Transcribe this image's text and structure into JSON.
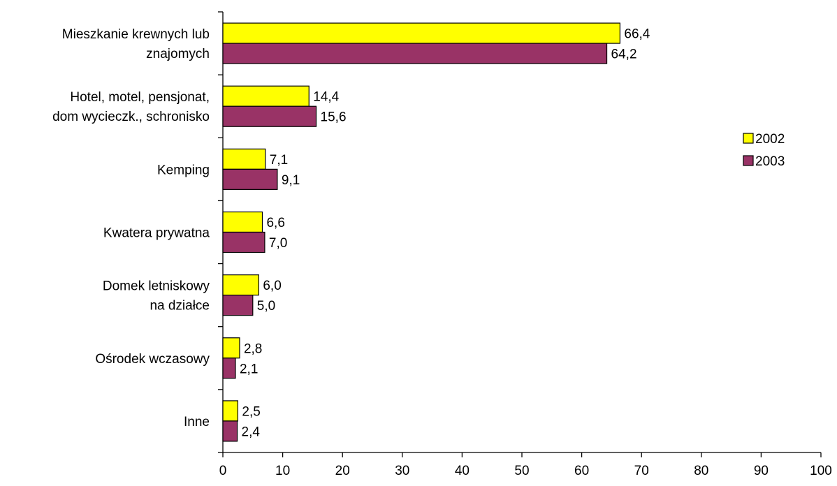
{
  "chart_data": {
    "type": "bar",
    "orientation": "horizontal",
    "categories": [
      [
        "Mieszkanie krewnych lub",
        "znajomych"
      ],
      [
        "Hotel, motel, pensjonat,",
        "dom wycieczk., schronisko"
      ],
      [
        "Kemping"
      ],
      [
        "Kwatera prywatna"
      ],
      [
        "Domek letniskowy",
        "na działce"
      ],
      [
        "Ośrodek wczasowy"
      ],
      [
        "Inne"
      ]
    ],
    "series": [
      {
        "name": "2002",
        "color": "#ffff00",
        "values": [
          66.4,
          14.4,
          7.1,
          6.6,
          6.0,
          2.8,
          2.5
        ],
        "labels": [
          "66,4",
          "14,4",
          "7,1",
          "6,6",
          "6,0",
          "2,8",
          "2,5"
        ]
      },
      {
        "name": "2003",
        "color": "#993366",
        "values": [
          64.2,
          15.6,
          9.1,
          7.0,
          5.0,
          2.1,
          2.4
        ],
        "labels": [
          "64,2",
          "15,6",
          "9,1",
          "7,0",
          "5,0",
          "2,1",
          "2,4"
        ]
      }
    ],
    "xlim": [
      0,
      100
    ],
    "xticks": [
      0,
      10,
      20,
      30,
      40,
      50,
      60,
      70,
      80,
      90,
      100
    ],
    "grid": false,
    "legend_position": "right"
  }
}
